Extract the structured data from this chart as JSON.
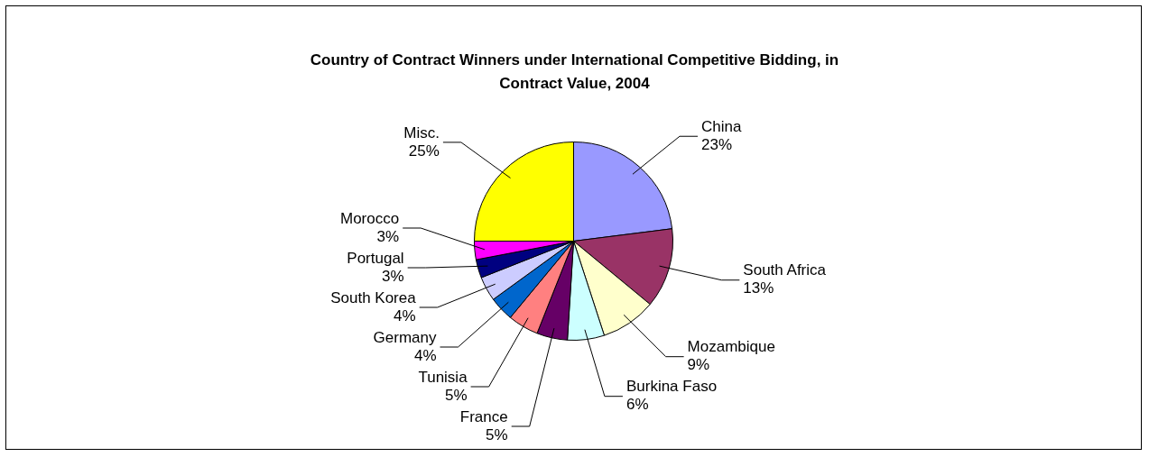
{
  "chart_data": {
    "type": "pie",
    "title": "Country of Contract Winners under International Competitive Bidding, in Contract Value, 2004",
    "categories": [
      "China",
      "South Africa",
      "Mozambique",
      "Burkina Faso",
      "France",
      "Tunisia",
      "Germany",
      "South Korea",
      "Portugal",
      "Morocco",
      "Misc."
    ],
    "values": [
      23,
      13,
      9,
      6,
      5,
      5,
      4,
      4,
      3,
      3,
      25
    ],
    "value_labels": [
      "23%",
      "13%",
      "9%",
      "6%",
      "5%",
      "5%",
      "4%",
      "4%",
      "3%",
      "3%",
      "25%"
    ],
    "colors": [
      "#9999ff",
      "#993366",
      "#ffffcc",
      "#ccffff",
      "#660066",
      "#ff8080",
      "#0066cc",
      "#ccccff",
      "#000080",
      "#ff00ff",
      "#ffff00"
    ]
  }
}
